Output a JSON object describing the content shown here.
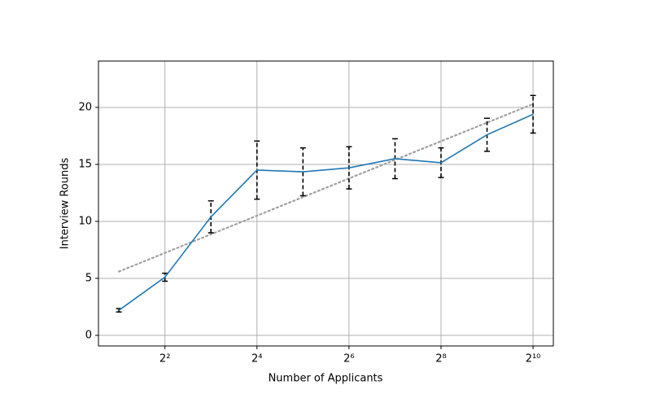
{
  "chart_data": {
    "type": "line",
    "xlabel": "Number of Applicants",
    "ylabel": "Interview Rounds",
    "x": [
      2,
      4,
      8,
      16,
      32,
      64,
      128,
      256,
      512,
      1024
    ],
    "series": [
      {
        "color": "#1f77b4",
        "values": [
          2.2,
          5.1,
          10.4,
          14.5,
          14.35,
          14.7,
          15.5,
          15.15,
          17.6,
          19.4
        ],
        "errors": [
          0.15,
          0.35,
          1.4,
          2.55,
          2.1,
          1.85,
          1.75,
          1.3,
          1.45,
          1.65
        ],
        "error_color": "#000000"
      }
    ],
    "trend": {
      "x": [
        2,
        1024
      ],
      "values": [
        5.6,
        20.3
      ],
      "color": "#a0a0a0"
    },
    "xscale": "log",
    "xlog_base": 2,
    "xlim": [
      1.47,
      1390
    ],
    "ylim": [
      -0.93,
      24.07
    ],
    "xticks": [
      {
        "value": 4,
        "label": "2²"
      },
      {
        "value": 16,
        "label": "2⁴"
      },
      {
        "value": 64,
        "label": "2⁶"
      },
      {
        "value": 256,
        "label": "2⁸"
      },
      {
        "value": 1024,
        "label": "2¹⁰"
      }
    ],
    "yticks": [
      0,
      5,
      10,
      15,
      20
    ],
    "grid": true
  }
}
